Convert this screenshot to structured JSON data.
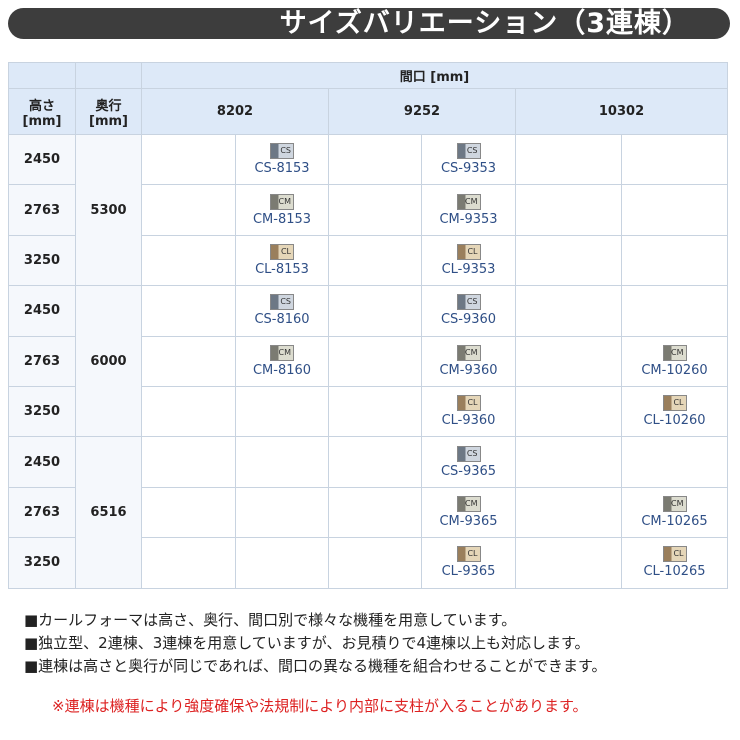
{
  "title": "サイズバリエーション（3連棟）",
  "header": {
    "frontage": "間口 [mm]",
    "height": "高さ\n[mm]",
    "depth": "奥行\n[mm]",
    "widths": [
      "8202",
      "9252",
      "10302"
    ]
  },
  "rows": [
    {
      "height": "2450",
      "depth": "5300",
      "cells": [
        null,
        {
          "code": "CS-8153",
          "type": "CS"
        },
        null,
        {
          "code": "CS-9353",
          "type": "CS"
        },
        null,
        null
      ]
    },
    {
      "height": "2763",
      "cells": [
        null,
        {
          "code": "CM-8153",
          "type": "CM"
        },
        null,
        {
          "code": "CM-9353",
          "type": "CM"
        },
        null,
        null
      ]
    },
    {
      "height": "3250",
      "cells": [
        null,
        {
          "code": "CL-8153",
          "type": "CL"
        },
        null,
        {
          "code": "CL-9353",
          "type": "CL"
        },
        null,
        null
      ]
    },
    {
      "height": "2450",
      "depth": "6000",
      "cells": [
        null,
        {
          "code": "CS-8160",
          "type": "CS"
        },
        null,
        {
          "code": "CS-9360",
          "type": "CS"
        },
        null,
        null
      ]
    },
    {
      "height": "2763",
      "cells": [
        null,
        {
          "code": "CM-8160",
          "type": "CM"
        },
        null,
        {
          "code": "CM-9360",
          "type": "CM"
        },
        null,
        {
          "code": "CM-10260",
          "type": "CM"
        }
      ]
    },
    {
      "height": "3250",
      "cells": [
        null,
        null,
        null,
        {
          "code": "CL-9360",
          "type": "CL"
        },
        null,
        {
          "code": "CL-10260",
          "type": "CL"
        }
      ]
    },
    {
      "height": "2450",
      "depth": "6516",
      "cells": [
        null,
        null,
        null,
        {
          "code": "CS-9365",
          "type": "CS"
        },
        null,
        null
      ]
    },
    {
      "height": "2763",
      "cells": [
        null,
        null,
        null,
        {
          "code": "CM-9365",
          "type": "CM"
        },
        null,
        {
          "code": "CM-10265",
          "type": "CM"
        }
      ]
    },
    {
      "height": "3250",
      "cells": [
        null,
        null,
        null,
        {
          "code": "CL-9365",
          "type": "CL"
        },
        null,
        {
          "code": "CL-10265",
          "type": "CL"
        }
      ]
    }
  ],
  "notes": [
    "■カールフォーマは高さ、奥行、間口別で様々な機種を用意しています。",
    "■独立型、2連棟、3連棟を用意していますが、お見積りで4連棟以上も対応します。",
    "■連棟は高さと奥行が同じであれば、間口の異なる機種を組合わせることができます。"
  ],
  "warning": "※連棟は機種により強度確保や法規制により内部に支柱が入ることがあります。"
}
